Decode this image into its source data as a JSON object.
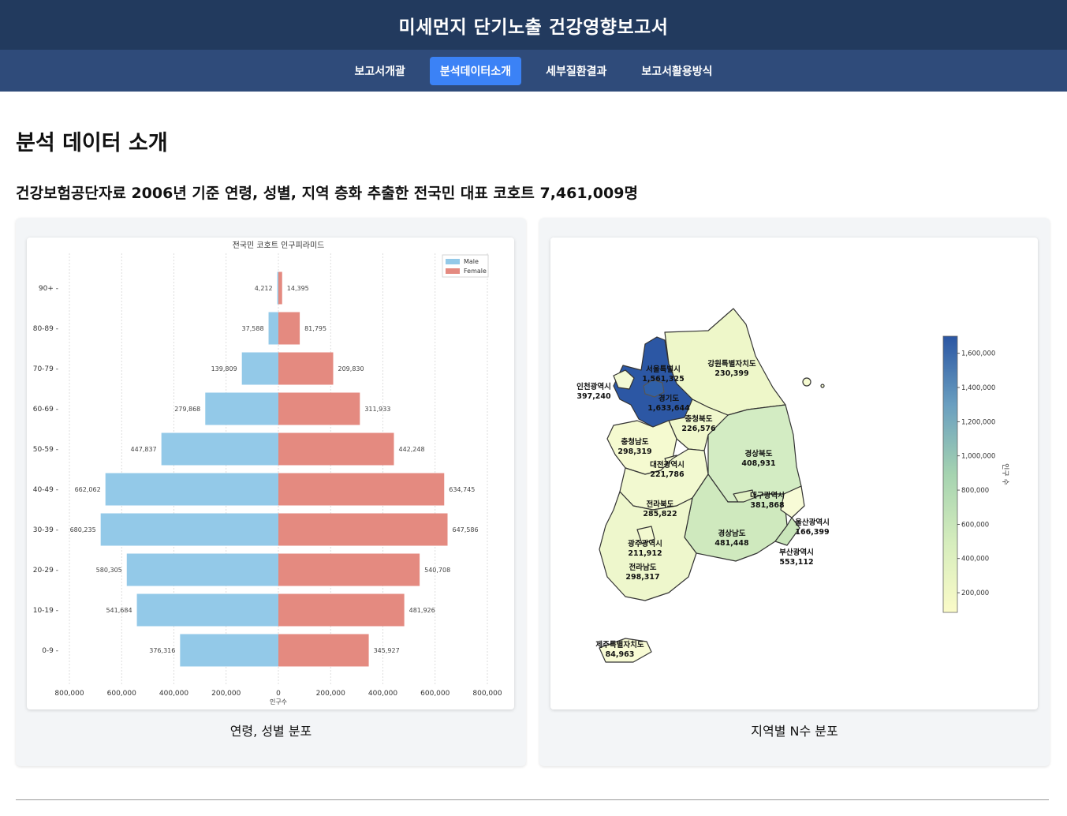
{
  "header": {
    "title": "미세먼지 단기노출 건강영향보고서"
  },
  "nav": {
    "items": [
      {
        "label": "보고서개괄"
      },
      {
        "label": "분석데이터소개"
      },
      {
        "label": "세부질환결과"
      },
      {
        "label": "보고서활용방식"
      }
    ]
  },
  "main": {
    "title": "분석 데이터 소개",
    "subtitle": "건강보험공단자료 2006년 기준 연령, 성별, 지역 층화 추출한 전국민 대표 코호트 7,461,009명"
  },
  "figures": {
    "pyramid_caption": "연령, 성별 분포",
    "map_caption": "지역별 N수 분포"
  },
  "colors": {
    "male": "#93c9e8",
    "female": "#e48a80",
    "header_bg": "#223a5e",
    "nav_bg": "#2f4b7a",
    "nav_active": "#3b82f6"
  },
  "chart_data": [
    {
      "type": "bar",
      "orientation": "horizontal",
      "title": "전국민 코호트 인구피라미드",
      "xlabel": "인구수",
      "categories": [
        "90+",
        "80-89",
        "70-79",
        "60-69",
        "50-59",
        "40-49",
        "30-39",
        "20-29",
        "10-19",
        "0-9"
      ],
      "series": [
        {
          "name": "Male",
          "values": [
            4212,
            37588,
            139809,
            279868,
            447837,
            662062,
            680235,
            580305,
            541684,
            376316
          ],
          "labels": [
            "4,212",
            "37,588",
            "139,809",
            "279,868",
            "447,837",
            "662,062",
            "680,235",
            "580,305",
            "541,684",
            "376,316"
          ]
        },
        {
          "name": "Female",
          "values": [
            14395,
            81795,
            209830,
            311933,
            442248,
            634745,
            647586,
            540708,
            481926,
            345927
          ],
          "labels": [
            "14,395",
            "81,795",
            "209,830",
            "311,933",
            "442,248",
            "634,745",
            "647,586",
            "540,708",
            "481,926",
            "345,927"
          ]
        }
      ],
      "xticks": [
        "800,000",
        "600,000",
        "400,000",
        "200,000",
        "0",
        "200,000",
        "400,000",
        "600,000",
        "800,000"
      ],
      "xlim": [
        -800000,
        800000
      ],
      "grid": true,
      "legend": "top-right"
    },
    {
      "type": "choropleth",
      "colorbar_label": "인구 수",
      "colorbar_ticks": [
        "1,600,000",
        "1,400,000",
        "1,200,000",
        "1,000,000",
        "800,000",
        "600,000",
        "400,000",
        "200,000"
      ],
      "colorbar_range": [
        84963,
        1700000
      ],
      "regions": [
        {
          "name": "서울특별시",
          "value": "1,561,325"
        },
        {
          "name": "경기도",
          "value": "1,633,644"
        },
        {
          "name": "인천광역시",
          "value": "397,240"
        },
        {
          "name": "강원특별자치도",
          "value": "230,399"
        },
        {
          "name": "충청북도",
          "value": "226,576"
        },
        {
          "name": "충청남도",
          "value": "298,319"
        },
        {
          "name": "대전광역시",
          "value": "221,786"
        },
        {
          "name": "경상북도",
          "value": "408,931"
        },
        {
          "name": "대구광역시",
          "value": "381,868"
        },
        {
          "name": "전라북도",
          "value": "285,822"
        },
        {
          "name": "울산광역시",
          "value": "166,399"
        },
        {
          "name": "경상남도",
          "value": "481,448"
        },
        {
          "name": "부산광역시",
          "value": "553,112"
        },
        {
          "name": "광주광역시",
          "value": "211,912"
        },
        {
          "name": "전라남도",
          "value": "298,317"
        },
        {
          "name": "제주특별자치도",
          "value": "84,963"
        }
      ]
    }
  ]
}
